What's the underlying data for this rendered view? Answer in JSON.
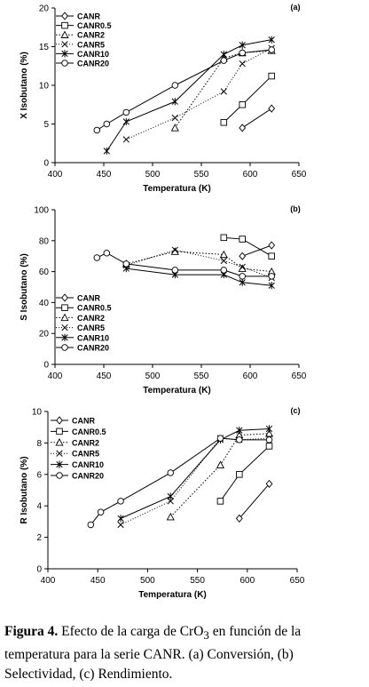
{
  "chart_data": [
    {
      "type": "line",
      "panel_tag": "(a)",
      "xlabel": "Temperatura (K)",
      "ylabel": "X Isobutano (%)",
      "xlim": [
        400,
        650
      ],
      "ylim": [
        0,
        20
      ],
      "xticks": [
        400,
        450,
        500,
        550,
        600,
        650
      ],
      "yticks": [
        0,
        5,
        10,
        15,
        20
      ],
      "legend_position": "top-left",
      "series": [
        {
          "name": "CANR",
          "marker": "diamond",
          "x": [
            592,
            622
          ],
          "y": [
            4.5,
            7.0
          ]
        },
        {
          "name": "CANR0.5",
          "marker": "square",
          "x": [
            573,
            592,
            622
          ],
          "y": [
            5.2,
            7.5,
            11.2
          ]
        },
        {
          "name": "CANR2",
          "marker": "triangle",
          "x": [
            523,
            573,
            592,
            622
          ],
          "y": [
            4.5,
            13.5,
            14.2,
            14.5
          ]
        },
        {
          "name": "CANR5",
          "marker": "x",
          "x": [
            473,
            523,
            573,
            592,
            622
          ],
          "y": [
            3.0,
            5.8,
            9.2,
            12.8,
            14.8
          ]
        },
        {
          "name": "CANR10",
          "marker": "star",
          "x": [
            453,
            473,
            523,
            573,
            592,
            622
          ],
          "y": [
            1.5,
            5.3,
            7.9,
            14.0,
            15.2,
            15.9
          ]
        },
        {
          "name": "CANR20",
          "marker": "circle",
          "x": [
            443,
            453,
            473,
            523,
            573,
            592,
            622
          ],
          "y": [
            4.2,
            5.0,
            6.5,
            10.0,
            13.2,
            14.2,
            14.6
          ]
        }
      ]
    },
    {
      "type": "line",
      "panel_tag": "(b)",
      "xlabel": "Temperatura (K)",
      "ylabel": "S Isobutano (%)",
      "xlim": [
        400,
        650
      ],
      "ylim": [
        0,
        100
      ],
      "xticks": [
        400,
        450,
        500,
        550,
        600,
        650
      ],
      "yticks": [
        0,
        20,
        40,
        60,
        80,
        100
      ],
      "legend_position": "bottom-left",
      "series": [
        {
          "name": "CANR",
          "marker": "diamond",
          "x": [
            592,
            622
          ],
          "y": [
            70,
            77
          ]
        },
        {
          "name": "CANR0.5",
          "marker": "square",
          "x": [
            573,
            592,
            622
          ],
          "y": [
            82,
            81,
            70
          ]
        },
        {
          "name": "CANR2",
          "marker": "triangle",
          "x": [
            473,
            523,
            573,
            592,
            622
          ],
          "y": [
            65,
            73,
            71,
            62,
            60
          ]
        },
        {
          "name": "CANR5",
          "marker": "x",
          "x": [
            473,
            523,
            573,
            592,
            622
          ],
          "y": [
            64,
            74,
            67,
            63,
            56
          ]
        },
        {
          "name": "CANR10",
          "marker": "star",
          "x": [
            473,
            523,
            573,
            592,
            622
          ],
          "y": [
            62,
            58,
            58,
            53,
            51
          ]
        },
        {
          "name": "CANR20",
          "marker": "circle",
          "x": [
            443,
            453,
            473,
            523,
            573,
            592,
            622
          ],
          "y": [
            69,
            72,
            65,
            61,
            61,
            57,
            57
          ]
        }
      ]
    },
    {
      "type": "line",
      "panel_tag": "(c)",
      "xlabel": "Temperatura (K)",
      "ylabel": "R Isobutano (%)",
      "xlim": [
        400,
        650
      ],
      "ylim": [
        0,
        10
      ],
      "xticks": [
        400,
        450,
        500,
        550,
        600,
        650
      ],
      "yticks": [
        0,
        2,
        4,
        6,
        8,
        10
      ],
      "legend_position": "top-left",
      "series": [
        {
          "name": "CANR",
          "marker": "diamond",
          "x": [
            592,
            622
          ],
          "y": [
            3.2,
            5.4
          ]
        },
        {
          "name": "CANR0.5",
          "marker": "square",
          "x": [
            573,
            592,
            622
          ],
          "y": [
            4.3,
            6.0,
            7.8
          ]
        },
        {
          "name": "CANR2",
          "marker": "triangle",
          "x": [
            523,
            573,
            592,
            622
          ],
          "y": [
            3.3,
            6.6,
            8.5,
            8.6
          ]
        },
        {
          "name": "CANR5",
          "marker": "x",
          "x": [
            473,
            523,
            573,
            592,
            622
          ],
          "y": [
            2.8,
            4.3,
            8.3,
            8.2,
            8.3
          ]
        },
        {
          "name": "CANR10",
          "marker": "star",
          "x": [
            473,
            523,
            573,
            592,
            622
          ],
          "y": [
            3.2,
            4.6,
            8.2,
            8.8,
            8.9
          ]
        },
        {
          "name": "CANR20",
          "marker": "circle",
          "x": [
            443,
            453,
            473,
            523,
            573,
            592,
            622
          ],
          "y": [
            2.8,
            3.6,
            4.3,
            6.1,
            8.3,
            8.2,
            8.2
          ]
        }
      ]
    }
  ],
  "caption": {
    "label": "Figura 4.",
    "text_before_formula": " Efecto de la carga de CrO",
    "formula_subscript": "3",
    "text_after_formula": " en función de la temperatura para la serie CANR. (a) Conversión, (b) Selectividad, (c) Rendimiento."
  }
}
